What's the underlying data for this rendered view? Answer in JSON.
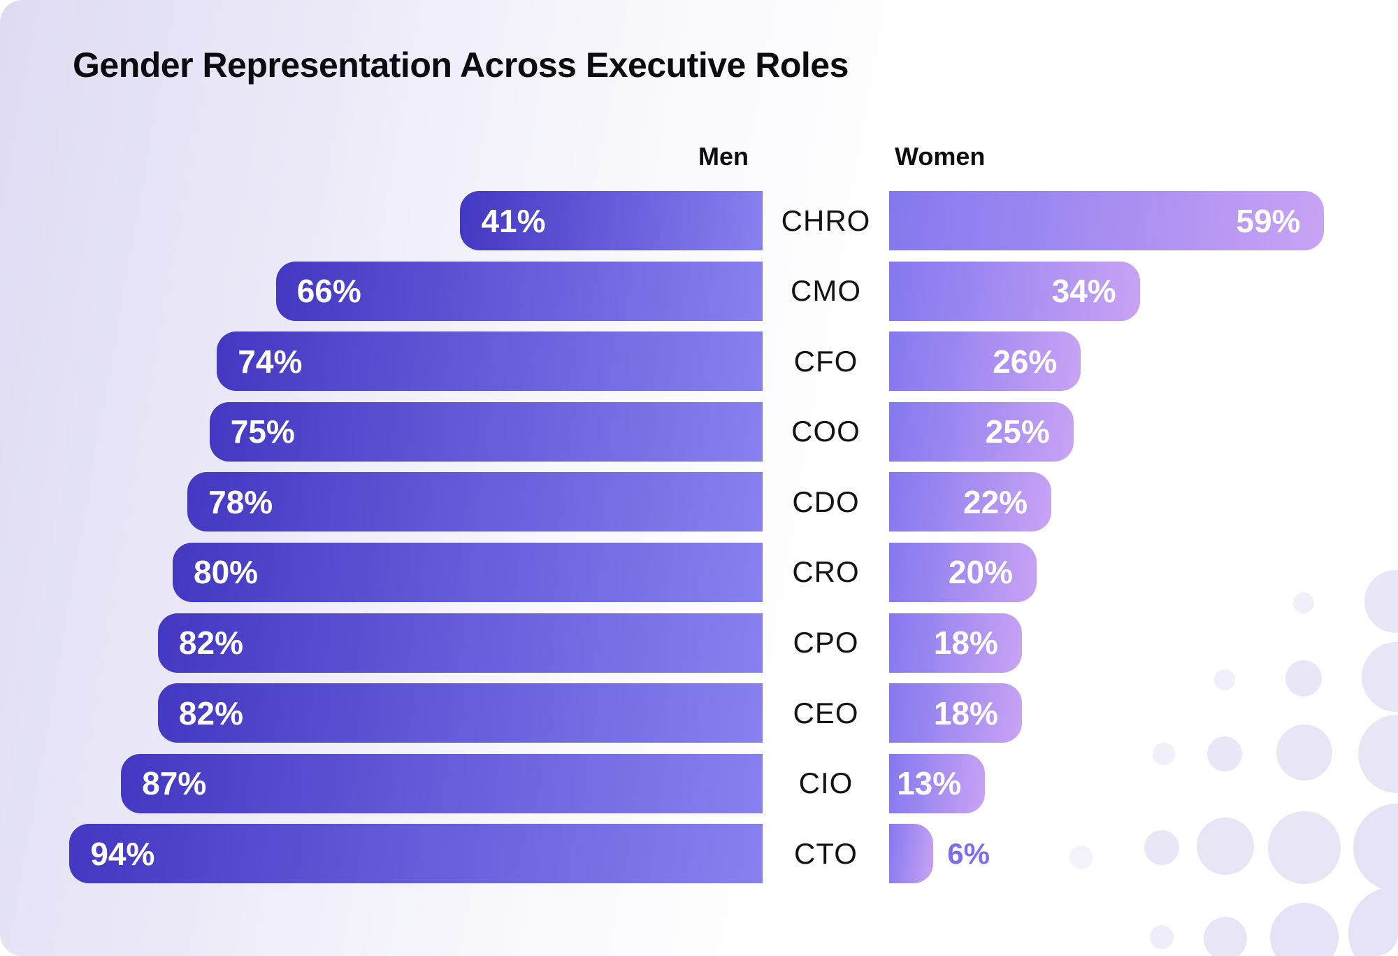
{
  "title": "Gender Representation Across Executive Roles",
  "legend": {
    "men_label": "Men",
    "women_label": "Women"
  },
  "chart_data": {
    "type": "bar",
    "subtype": "diverging-horizontal-butterfly",
    "title": "Gender Representation Across Executive Roles",
    "categories": [
      "CHRO",
      "CMO",
      "CFO",
      "COO",
      "CDO",
      "CRO",
      "CPO",
      "CEO",
      "CIO",
      "CTO"
    ],
    "series": [
      {
        "name": "Men",
        "values": [
          41,
          66,
          74,
          75,
          78,
          80,
          82,
          82,
          87,
          94
        ]
      },
      {
        "name": "Women",
        "values": [
          59,
          34,
          26,
          25,
          22,
          20,
          18,
          18,
          13,
          6
        ]
      }
    ],
    "value_suffix": "%",
    "xlim": [
      0,
      100
    ],
    "grid": false,
    "legend_position": "top",
    "category_label_position": "center-gutter"
  },
  "colors": {
    "men_gradient_start": "#4238C2",
    "men_gradient_end": "#8781F0",
    "women_gradient_start": "#8478EF",
    "women_gradient_end": "#C9A3F4",
    "bar_label": "#FFFFFF",
    "outside_label": "#7A6DF0",
    "title_text": "#0C0C10",
    "role_text": "#131316",
    "card_bg_from": "#DEDBF3",
    "card_bg_to": "#FFFFFF",
    "dots": "#E7E5F6"
  }
}
